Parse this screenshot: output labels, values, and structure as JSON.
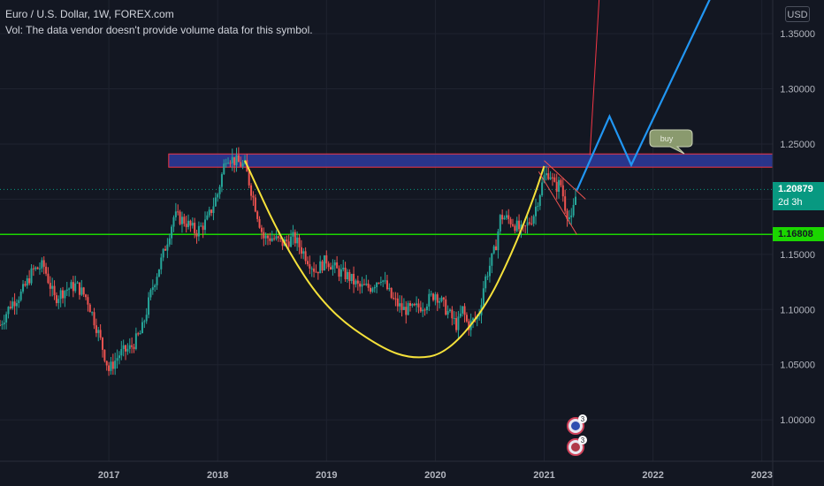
{
  "legend": {
    "title": "Euro / U.S. Dollar, 1W, FOREX.com",
    "volume_note": "Vol: The data vendor doesn't provide volume data for this symbol."
  },
  "currency_label": "USD",
  "current_price": {
    "value": "1.20879",
    "countdown": "2d 3h",
    "color": "#089981"
  },
  "horizontal_level": {
    "value": "1.16808",
    "color": "#1bd600"
  },
  "annotation": {
    "text": "buy"
  },
  "event_badges": [
    {
      "count": "3",
      "icon": "eu-flag-icon"
    },
    {
      "count": "3",
      "icon": "us-flag-icon"
    }
  ],
  "chart_data": {
    "type": "candlestick",
    "symbol": "EURUSD",
    "timeframe": "1W",
    "x_ticks": [
      2017,
      2018,
      2019,
      2020,
      2021,
      2022,
      2023
    ],
    "x_range": [
      2016.0,
      2023.1
    ],
    "y_ticks": [
      "1.35000",
      "1.30000",
      "1.25000",
      "1.20000",
      "1.15000",
      "1.10000",
      "1.05000",
      "1.00000"
    ],
    "y_range": [
      0.9625,
      1.3805
    ],
    "grid": true,
    "colors": {
      "up": "#26a69a",
      "down": "#ef5350",
      "cup_curve": "#f5e13a",
      "projection": "#2196f3",
      "resistance_zone": "#2e3b9e",
      "resistance_border": "#f23645"
    },
    "resistance_zone": {
      "price_low": 1.229,
      "price_high": 1.241,
      "x_start": 2017.55
    },
    "cup_curve": [
      [
        2018.25,
        1.235
      ],
      [
        2018.6,
        1.16
      ],
      [
        2019.0,
        1.1
      ],
      [
        2019.5,
        1.065
      ],
      [
        2019.8,
        1.055
      ],
      [
        2020.1,
        1.06
      ],
      [
        2020.45,
        1.1
      ],
      [
        2020.7,
        1.15
      ],
      [
        2020.9,
        1.2
      ],
      [
        2021.0,
        1.23
      ]
    ],
    "flag_channel": [
      [
        [
          2021.0,
          1.235
        ],
        [
          2021.38,
          1.2
        ]
      ],
      [
        [
          2020.95,
          1.225
        ],
        [
          2021.3,
          1.168
        ]
      ]
    ],
    "projection_path": [
      [
        2021.3,
        1.208
      ],
      [
        2021.6,
        1.275
      ],
      [
        2021.8,
        1.231
      ],
      [
        2022.55,
        1.387
      ]
    ],
    "red_projection": [
      [
        2021.42,
        1.24
      ],
      [
        2021.51,
        1.39
      ]
    ],
    "prices": [
      [
        2016.0,
        1.086
      ],
      [
        2016.1,
        1.105
      ],
      [
        2016.2,
        1.115
      ],
      [
        2016.3,
        1.135
      ],
      [
        2016.4,
        1.14
      ],
      [
        2016.5,
        1.11
      ],
      [
        2016.6,
        1.118
      ],
      [
        2016.7,
        1.122
      ],
      [
        2016.8,
        1.11
      ],
      [
        2016.9,
        1.08
      ],
      [
        2017.0,
        1.045
      ],
      [
        2017.1,
        1.06
      ],
      [
        2017.2,
        1.065
      ],
      [
        2017.3,
        1.08
      ],
      [
        2017.4,
        1.12
      ],
      [
        2017.5,
        1.15
      ],
      [
        2017.6,
        1.185
      ],
      [
        2017.7,
        1.18
      ],
      [
        2017.8,
        1.17
      ],
      [
        2017.9,
        1.18
      ],
      [
        2018.0,
        1.205
      ],
      [
        2018.08,
        1.24
      ],
      [
        2018.15,
        1.235
      ],
      [
        2018.25,
        1.23
      ],
      [
        2018.33,
        1.2
      ],
      [
        2018.42,
        1.165
      ],
      [
        2018.5,
        1.165
      ],
      [
        2018.6,
        1.16
      ],
      [
        2018.7,
        1.165
      ],
      [
        2018.8,
        1.15
      ],
      [
        2018.9,
        1.135
      ],
      [
        2019.0,
        1.145
      ],
      [
        2019.1,
        1.135
      ],
      [
        2019.2,
        1.13
      ],
      [
        2019.3,
        1.12
      ],
      [
        2019.4,
        1.12
      ],
      [
        2019.5,
        1.13
      ],
      [
        2019.6,
        1.11
      ],
      [
        2019.7,
        1.1
      ],
      [
        2019.8,
        1.1
      ],
      [
        2019.9,
        1.105
      ],
      [
        2020.0,
        1.115
      ],
      [
        2020.1,
        1.1
      ],
      [
        2020.2,
        1.085
      ],
      [
        2020.25,
        1.1
      ],
      [
        2020.3,
        1.085
      ],
      [
        2020.4,
        1.095
      ],
      [
        2020.45,
        1.125
      ],
      [
        2020.55,
        1.155
      ],
      [
        2020.6,
        1.185
      ],
      [
        2020.7,
        1.18
      ],
      [
        2020.8,
        1.17
      ],
      [
        2020.9,
        1.185
      ],
      [
        2021.0,
        1.22
      ],
      [
        2021.05,
        1.225
      ],
      [
        2021.1,
        1.21
      ],
      [
        2021.15,
        1.215
      ],
      [
        2021.2,
        1.19
      ],
      [
        2021.25,
        1.18
      ],
      [
        2021.3,
        1.2088
      ]
    ]
  }
}
